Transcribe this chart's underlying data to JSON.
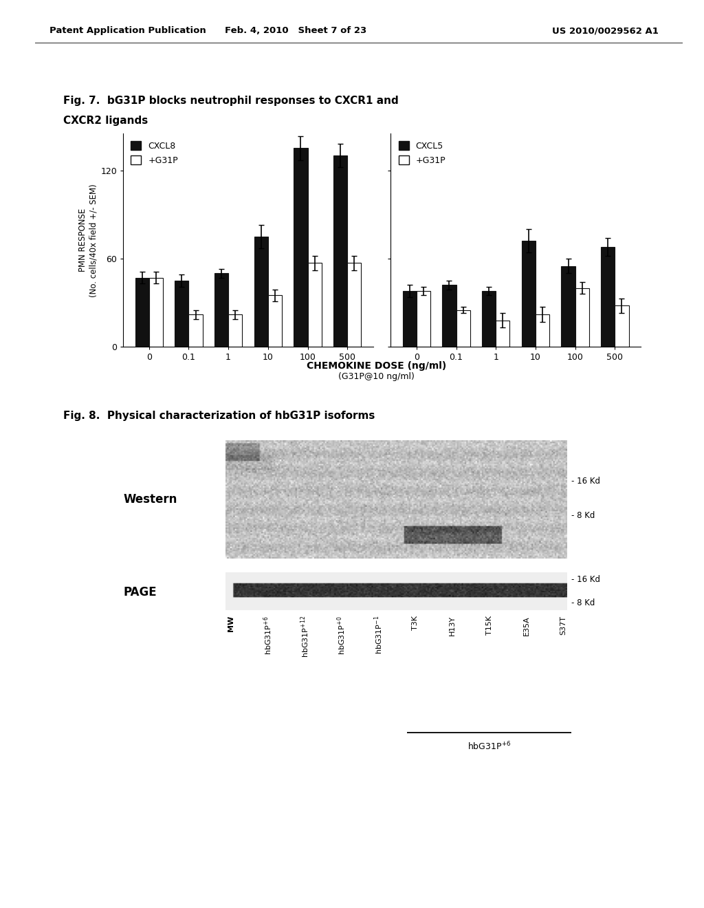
{
  "header_left": "Patent Application Publication",
  "header_mid": "Feb. 4, 2010   Sheet 7 of 23",
  "header_right": "US 2010/0029562 A1",
  "fig7_title_line1": "Fig. 7.  bG31P blocks neutrophil responses to CXCR1 and",
  "fig7_title_line2": "CXCR2 ligands",
  "fig8_title": "Fig. 8.  Physical characterization of hbG31P isoforms",
  "ylabel_top": "PMN RESPONSE",
  "ylabel_bot": "(No. cells/40x field +/- SEM)",
  "xlabel": "CHEMOKINE DOSE (ng/ml)",
  "xlabel2": "(G31P@10 ng/ml)",
  "xtick_labels": [
    "0",
    "0.1",
    "1",
    "10",
    "100",
    "500"
  ],
  "ylim": [
    0,
    145
  ],
  "left_black_values": [
    47,
    45,
    50,
    75,
    135,
    130
  ],
  "left_white_values": [
    47,
    22,
    22,
    35,
    57,
    57
  ],
  "left_black_err": [
    4,
    4,
    3,
    8,
    8,
    8
  ],
  "left_white_err": [
    4,
    3,
    3,
    4,
    5,
    5
  ],
  "right_black_values": [
    38,
    42,
    38,
    72,
    55,
    68
  ],
  "right_white_values": [
    38,
    25,
    18,
    22,
    40,
    28
  ],
  "right_black_err": [
    4,
    3,
    3,
    8,
    5,
    6
  ],
  "right_white_err": [
    3,
    2,
    5,
    5,
    4,
    5
  ],
  "left_legend_black": "CXCL8",
  "left_legend_white": "+G31P",
  "right_legend_black": "CXCL5",
  "right_legend_white": "+G31P",
  "western_label": "Western",
  "page_label": "PAGE",
  "kd_labels_western": [
    "- 16 Kd",
    "- 8 Kd"
  ],
  "kd_labels_page": [
    "- 16 Kd",
    "- 8 Kd"
  ],
  "lane_labels": [
    "MW",
    "hbG31P+6",
    "hbG31P+12",
    "hbG31P+0",
    "hbG31P-1",
    "T3K",
    "H13Y",
    "T15K",
    "E35A",
    "S37T"
  ],
  "lane_labels_super": [
    "",
    "+6",
    "+12",
    "+0",
    "-1",
    "",
    "",
    "",
    "",
    ""
  ],
  "bracket_label": "hbG31P+6",
  "bar_width": 0.35,
  "bar_black_color": "#111111",
  "bar_white_color": "#ffffff",
  "bar_edge_color": "#111111",
  "background_color": "#ffffff",
  "elinewidth": 1.2,
  "capsize": 3
}
